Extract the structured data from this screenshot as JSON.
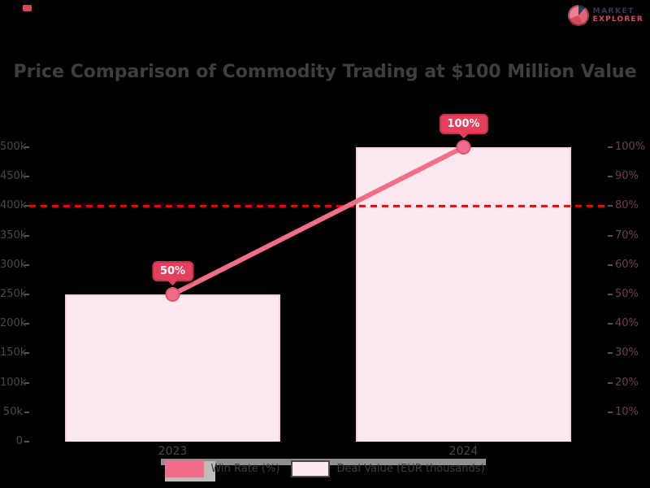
{
  "page": {
    "background": "#000000"
  },
  "logo": {
    "line1": "MARKET",
    "line2": "EXPLORER"
  },
  "header": {
    "title": "Price Comparison of Commodity Trading at $100 Million Value"
  },
  "chart_data": {
    "type": "bar",
    "subtype": "combo-bar-line",
    "title": "Price Comparison of Commodity Trading at $100 Million Value",
    "categories": [
      "2023",
      "2024"
    ],
    "series": [
      {
        "name": "Win Rate (%)",
        "type": "line",
        "axis": "right",
        "values": [
          50,
          100
        ],
        "data_labels": [
          "50%",
          "100%"
        ],
        "color": "#f26d89"
      },
      {
        "name": "Deal Value (EUR thousands)",
        "type": "bar",
        "axis": "left",
        "values": [
          250,
          500
        ],
        "color": "#fce9f0",
        "border_color": "#f6cfdd"
      }
    ],
    "threshold_line": {
      "value": 80,
      "axis": "right",
      "style": "dashed",
      "color": "#f80000"
    },
    "left_axis": {
      "max": 500,
      "tick_values": [
        0,
        50,
        100,
        150,
        200,
        250,
        300,
        350,
        400,
        450,
        500
      ],
      "tick_labels": [
        "0",
        "50k",
        "100k",
        "150k",
        "200k",
        "250k",
        "300k",
        "350k",
        "400k",
        "450k",
        "500k"
      ]
    },
    "right_axis": {
      "max": 100,
      "tick_values": [
        10,
        20,
        30,
        40,
        50,
        60,
        70,
        80,
        90,
        100
      ],
      "tick_labels": [
        "10%",
        "20%",
        "30%",
        "40%",
        "50%",
        "60%",
        "70%",
        "80%",
        "90%",
        "100%"
      ]
    },
    "grid": false,
    "legend_position": "bottom",
    "legend": [
      {
        "label": "Win Rate (%)",
        "swatch": "solid"
      },
      {
        "label": "Deal Value (EUR thousands)",
        "swatch": "light"
      }
    ],
    "colors": {
      "accent_pink": "#f26d89",
      "badge_red": "#e4405b",
      "threshold_red": "#f80000",
      "bar_fill": "#fce9f0",
      "bar_border": "#f6cfdd",
      "text_dark": "#3e3e3e"
    }
  }
}
